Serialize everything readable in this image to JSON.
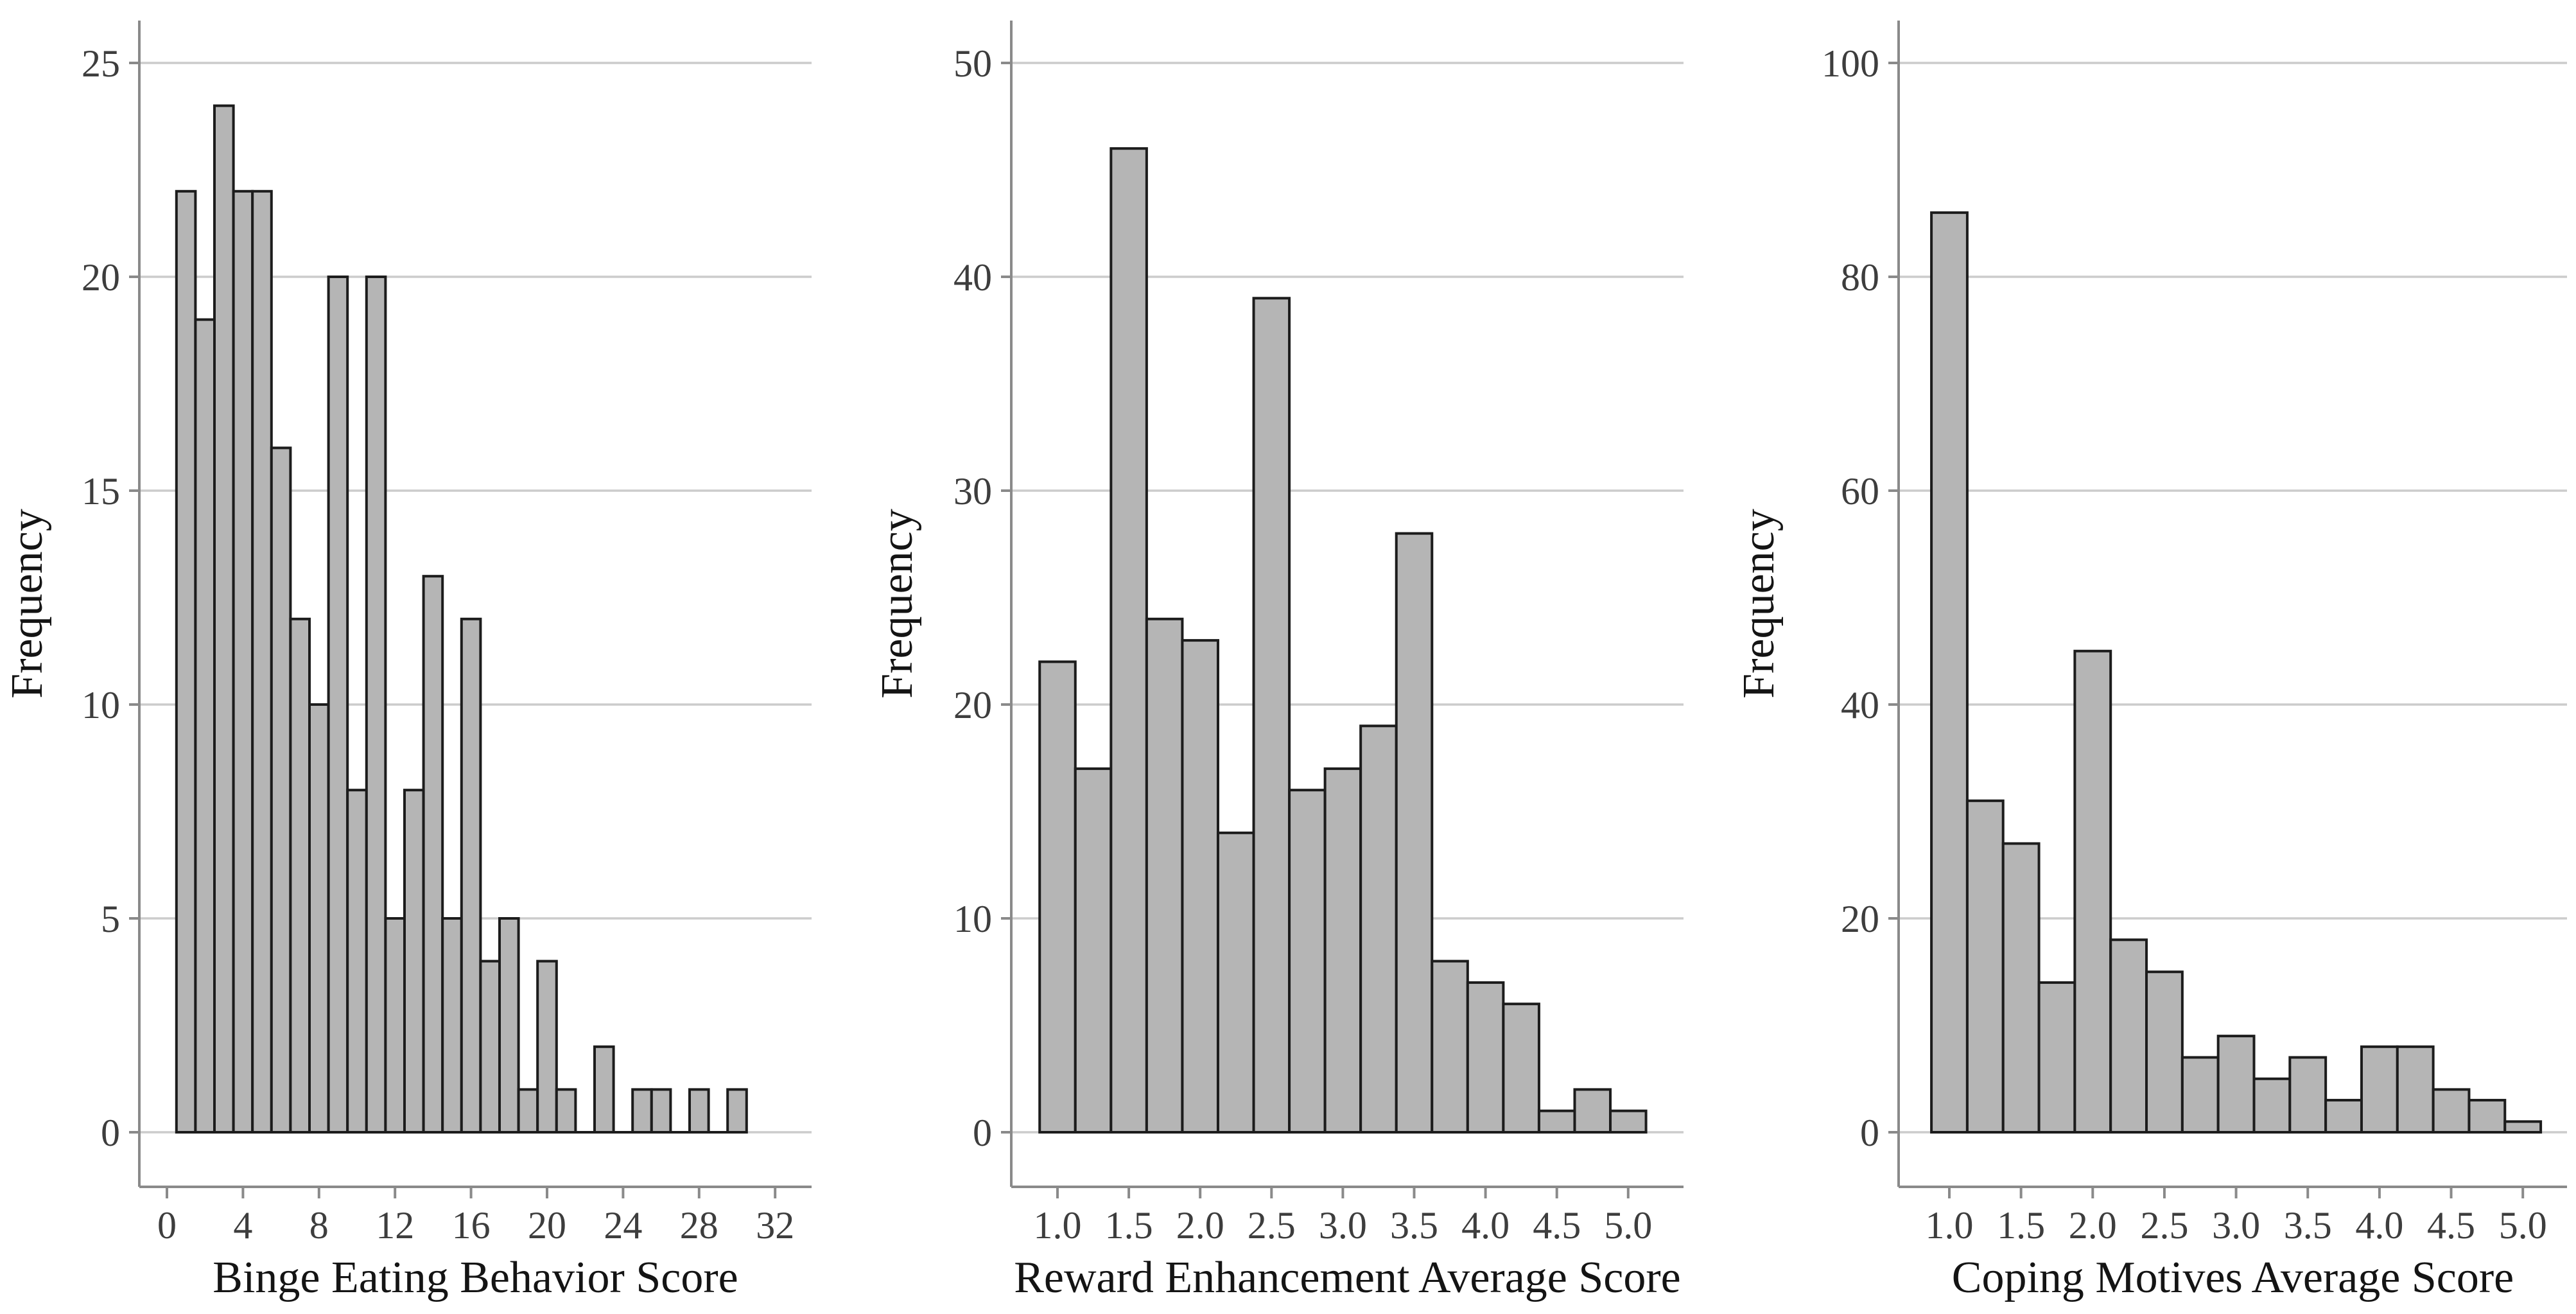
{
  "figure": {
    "ylabel": "Frequency",
    "background": "#ffffff"
  },
  "colors": {
    "background": "#ffffff",
    "bar_fill": "#b5b5b5",
    "bar_stroke": "#1c1c1c",
    "gridline": "#cccccc",
    "axis_line": "#8a8a8a",
    "tick_label": "#3d3d3d",
    "title_text": "#141414"
  },
  "chart_data": [
    {
      "type": "bar",
      "variant": "histogram",
      "xlabel": "Binge Eating Behavior Score",
      "ylabel": "Frequency",
      "bin_width": 1,
      "bin_centers": [
        1,
        2,
        3,
        4,
        5,
        6,
        7,
        8,
        9,
        10,
        11,
        12,
        13,
        14,
        15,
        16,
        17,
        18,
        19,
        20,
        21,
        22,
        23,
        24,
        25,
        26,
        27,
        28,
        29,
        30
      ],
      "counts": [
        22,
        19,
        24,
        22,
        22,
        16,
        12,
        10,
        20,
        8,
        20,
        5,
        8,
        13,
        5,
        12,
        4,
        5,
        1,
        4,
        1,
        0,
        2,
        0,
        1,
        1,
        0,
        1,
        0,
        1
      ],
      "x_tick_values": [
        0,
        4,
        8,
        12,
        16,
        20,
        24,
        28,
        32
      ],
      "x_tick_labels": [
        "0",
        "4",
        "8",
        "12",
        "16",
        "20",
        "24",
        "28",
        "32"
      ],
      "y_tick_values": [
        0,
        5,
        10,
        15,
        20,
        25
      ],
      "y_tick_labels": [
        "0",
        "5",
        "10",
        "15",
        "20",
        "25"
      ],
      "ylim": [
        0,
        25
      ],
      "grid": "horizontal",
      "legend": "none"
    },
    {
      "type": "bar",
      "variant": "histogram",
      "xlabel": "Reward Enhancement Average Score",
      "ylabel": "Frequency",
      "bin_width": 0.25,
      "bin_centers": [
        1.0,
        1.25,
        1.5,
        1.75,
        2.0,
        2.25,
        2.5,
        2.75,
        3.0,
        3.25,
        3.5,
        3.75,
        4.0,
        4.25,
        4.5,
        4.75,
        5.0
      ],
      "counts": [
        22,
        17,
        46,
        24,
        23,
        14,
        39,
        16,
        17,
        19,
        28,
        8,
        7,
        6,
        1,
        2,
        1
      ],
      "x_tick_values": [
        1.0,
        1.5,
        2.0,
        2.5,
        3.0,
        3.5,
        4.0,
        4.5,
        5.0
      ],
      "x_tick_labels": [
        "1.0",
        "1.5",
        "2.0",
        "2.5",
        "3.0",
        "3.5",
        "4.0",
        "4.5",
        "5.0"
      ],
      "y_tick_values": [
        0,
        10,
        20,
        30,
        40,
        50
      ],
      "y_tick_labels": [
        "0",
        "10",
        "20",
        "30",
        "40",
        "50"
      ],
      "ylim": [
        0,
        50
      ],
      "grid": "horizontal",
      "legend": "none"
    },
    {
      "type": "bar",
      "variant": "histogram",
      "xlabel": "Coping Motives Average Score",
      "ylabel": "Frequency",
      "bin_width": 0.25,
      "bin_centers": [
        1.0,
        1.25,
        1.5,
        1.75,
        2.0,
        2.25,
        2.5,
        2.75,
        3.0,
        3.25,
        3.5,
        3.75,
        4.0,
        4.25,
        4.5,
        4.75,
        5.0
      ],
      "counts": [
        86,
        31,
        27,
        14,
        45,
        18,
        15,
        7,
        9,
        5,
        7,
        3,
        8,
        8,
        4,
        3,
        1
      ],
      "x_tick_values": [
        1.0,
        1.5,
        2.0,
        2.5,
        3.0,
        3.5,
        4.0,
        4.5,
        5.0
      ],
      "x_tick_labels": [
        "1.0",
        "1.5",
        "2.0",
        "2.5",
        "3.0",
        "3.5",
        "4.0",
        "4.5",
        "5.0"
      ],
      "y_tick_values": [
        0,
        20,
        40,
        60,
        80,
        100
      ],
      "y_tick_labels": [
        "0",
        "20",
        "40",
        "60",
        "80",
        "100"
      ],
      "ylim": [
        0,
        100
      ],
      "grid": "horizontal",
      "legend": "none"
    }
  ]
}
